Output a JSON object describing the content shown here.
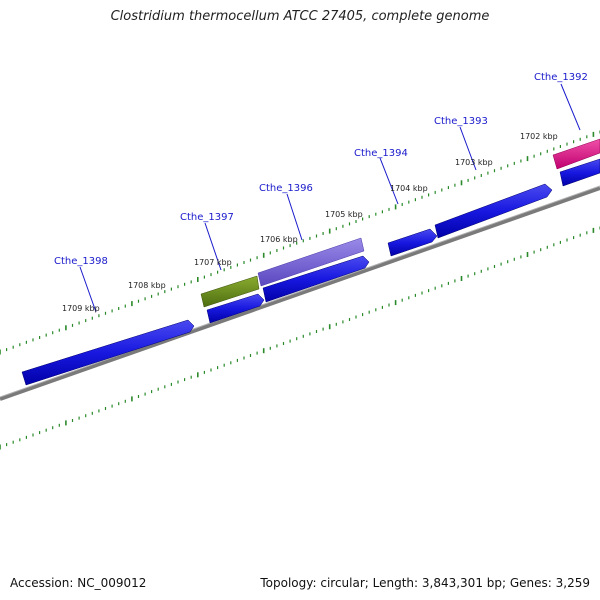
{
  "title": "Clostridium thermocellum ATCC 27405, complete genome",
  "footer": {
    "accession": "Accession: NC_009012",
    "info": "Topology: circular; Length: 3,843,301 bp; Genes: 3,259"
  },
  "colors": {
    "cds_forward": "#1f1fd6",
    "cds_reverse": "#0000cc",
    "highlight_purple": "#7a68d8",
    "highlight_olive": "#6a8c1c",
    "highlight_magenta": "#e0188a",
    "backbone": "#888888",
    "tick": "#2a8a2a",
    "label": "#1a1acc"
  },
  "kbp_ticks": [
    "1702 kbp",
    "1703 kbp",
    "1704 kbp",
    "1705 kbp",
    "1706 kbp",
    "1707 kbp",
    "1708 kbp",
    "1709 kbp"
  ],
  "gene_labels": [
    "Cthe_1392",
    "Cthe_1393",
    "Cthe_1394",
    "Cthe_1396",
    "Cthe_1397",
    "Cthe_1398"
  ]
}
